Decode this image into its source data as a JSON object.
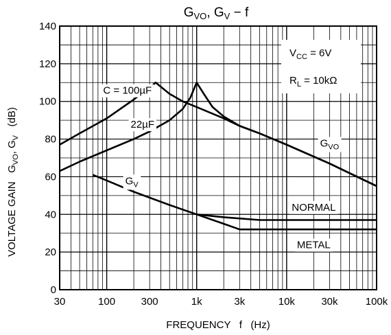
{
  "chart_data": {
    "type": "line",
    "title": "G_VO, G_V − f",
    "xlabel": "FREQUENCY   f   (Hz)",
    "ylabel": "VOLTAGE GAIN   G_VO, G_V   (dB)",
    "x_scale": "log",
    "xlim": [
      30,
      100000
    ],
    "ylim": [
      0,
      140
    ],
    "x_ticks": [
      {
        "value": 30,
        "label": "30"
      },
      {
        "value": 100,
        "label": "100"
      },
      {
        "value": 300,
        "label": "300"
      },
      {
        "value": 1000,
        "label": "1k"
      },
      {
        "value": 3000,
        "label": "3k"
      },
      {
        "value": 10000,
        "label": "10k"
      },
      {
        "value": 30000,
        "label": "30k"
      },
      {
        "value": 100000,
        "label": "100k"
      }
    ],
    "y_ticks": [
      0,
      20,
      40,
      60,
      80,
      100,
      120,
      140
    ],
    "grid": true,
    "conditions": [
      "V_CC = 6V",
      "R_L = 10kΩ"
    ],
    "series": [
      {
        "name": "C = 100µF",
        "points": [
          [
            30,
            77
          ],
          [
            50,
            83
          ],
          [
            100,
            91
          ],
          [
            200,
            101
          ],
          [
            350,
            110
          ],
          [
            500,
            104
          ],
          [
            700,
            100
          ],
          [
            1000,
            97
          ],
          [
            2000,
            91
          ],
          [
            3000,
            87
          ],
          [
            5000,
            83
          ],
          [
            10000,
            77
          ],
          [
            30000,
            67
          ],
          [
            100000,
            55
          ]
        ]
      },
      {
        "name": "22µF",
        "points": [
          [
            30,
            63
          ],
          [
            50,
            68
          ],
          [
            100,
            74
          ],
          [
            200,
            80
          ],
          [
            300,
            84
          ],
          [
            500,
            90
          ],
          [
            700,
            96
          ],
          [
            850,
            102
          ],
          [
            1000,
            110
          ],
          [
            1200,
            104
          ],
          [
            1500,
            97
          ],
          [
            2000,
            92
          ],
          [
            3000,
            87
          ],
          [
            5000,
            83
          ],
          [
            10000,
            77
          ],
          [
            30000,
            67
          ],
          [
            100000,
            55
          ]
        ]
      },
      {
        "name": "G_V",
        "points": [
          [
            70,
            61
          ],
          [
            100,
            58
          ],
          [
            200,
            52
          ],
          [
            500,
            45
          ],
          [
            1000,
            40
          ]
        ]
      },
      {
        "name": "NORMAL",
        "points": [
          [
            1000,
            40
          ],
          [
            2000,
            38.5
          ],
          [
            5000,
            37
          ],
          [
            100000,
            37
          ]
        ]
      },
      {
        "name": "METAL",
        "points": [
          [
            1000,
            40
          ],
          [
            2000,
            35
          ],
          [
            3000,
            32
          ],
          [
            100000,
            32
          ]
        ]
      }
    ],
    "annotations": [
      {
        "text": "C = 100µF",
        "x": 170,
        "y": 104
      },
      {
        "text": "22µF",
        "x": 250,
        "y": 86
      },
      {
        "text": "G_VO",
        "x": 30000,
        "y": 76
      },
      {
        "text": "G_V",
        "x": 190,
        "y": 56
      },
      {
        "text": "NORMAL",
        "x": 20000,
        "y": 42
      },
      {
        "text": "METAL",
        "x": 20000,
        "y": 22
      }
    ]
  }
}
